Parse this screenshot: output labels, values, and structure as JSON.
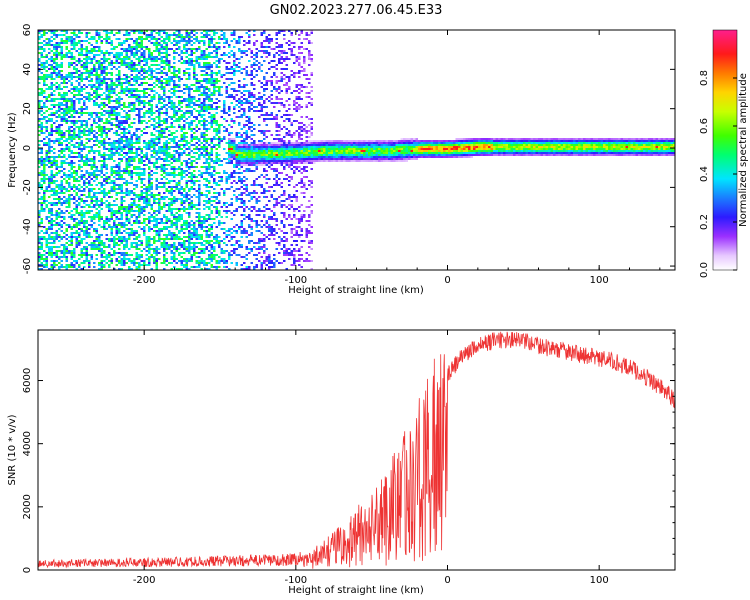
{
  "page_title": "GN02.2023.277.06.45.E33",
  "chart_data": [
    {
      "type": "heatmap",
      "title": "GN02.2023.277.06.45.E33",
      "xlabel": "Height of straight line (km)",
      "ylabel": "Frequency (Hz)",
      "xlim": [
        -270,
        150
      ],
      "ylim": [
        -62,
        60
      ],
      "x_ticks": [
        -200,
        -100,
        0,
        100
      ],
      "y_ticks": [
        -60,
        -40,
        -20,
        0,
        20,
        40,
        60
      ],
      "colorbar": {
        "label": "Normalized spectral amplitude",
        "range": [
          0,
          1
        ],
        "ticks": [
          0.0,
          0.2,
          0.4,
          0.6,
          0.8
        ],
        "colormap": "white-violet-blue-cyan-green-yellow-orange-red-magenta"
      },
      "description_trace": {
        "x": [
          -140,
          -100,
          -80,
          -60,
          -40,
          -20,
          0,
          20,
          40,
          60,
          80,
          100,
          120,
          150
        ],
        "center_freq": [
          -3,
          -2,
          -1,
          -1,
          -1,
          0,
          0,
          1,
          1,
          1,
          1,
          1,
          1,
          1
        ]
      }
    },
    {
      "type": "line",
      "title": "",
      "xlabel": "Height of straight line (km)",
      "ylabel": "SNR (10 * v/v)",
      "xlim": [
        -270,
        150
      ],
      "ylim": [
        0,
        7600
      ],
      "x_ticks": [
        -200,
        -100,
        0,
        100
      ],
      "y_ticks": [
        0,
        2000,
        4000,
        6000
      ],
      "series": [
        {
          "color": "#ee3333",
          "x": [
            -270,
            -250,
            -230,
            -210,
            -190,
            -170,
            -150,
            -130,
            -110,
            -100,
            -90,
            -80,
            -70,
            -60,
            -50,
            -40,
            -30,
            -20,
            -15,
            -10,
            -5,
            0,
            10,
            20,
            30,
            40,
            50,
            60,
            70,
            80,
            90,
            100,
            110,
            120,
            130,
            140,
            150
          ],
          "y": [
            200,
            210,
            220,
            230,
            250,
            260,
            280,
            300,
            320,
            350,
            500,
            800,
            1200,
            1600,
            2000,
            2600,
            3400,
            4200,
            4800,
            5400,
            5800,
            6200,
            6800,
            7100,
            7250,
            7300,
            7250,
            7100,
            7000,
            6900,
            6800,
            6700,
            6600,
            6400,
            6150,
            5800,
            5400
          ]
        }
      ]
    }
  ]
}
